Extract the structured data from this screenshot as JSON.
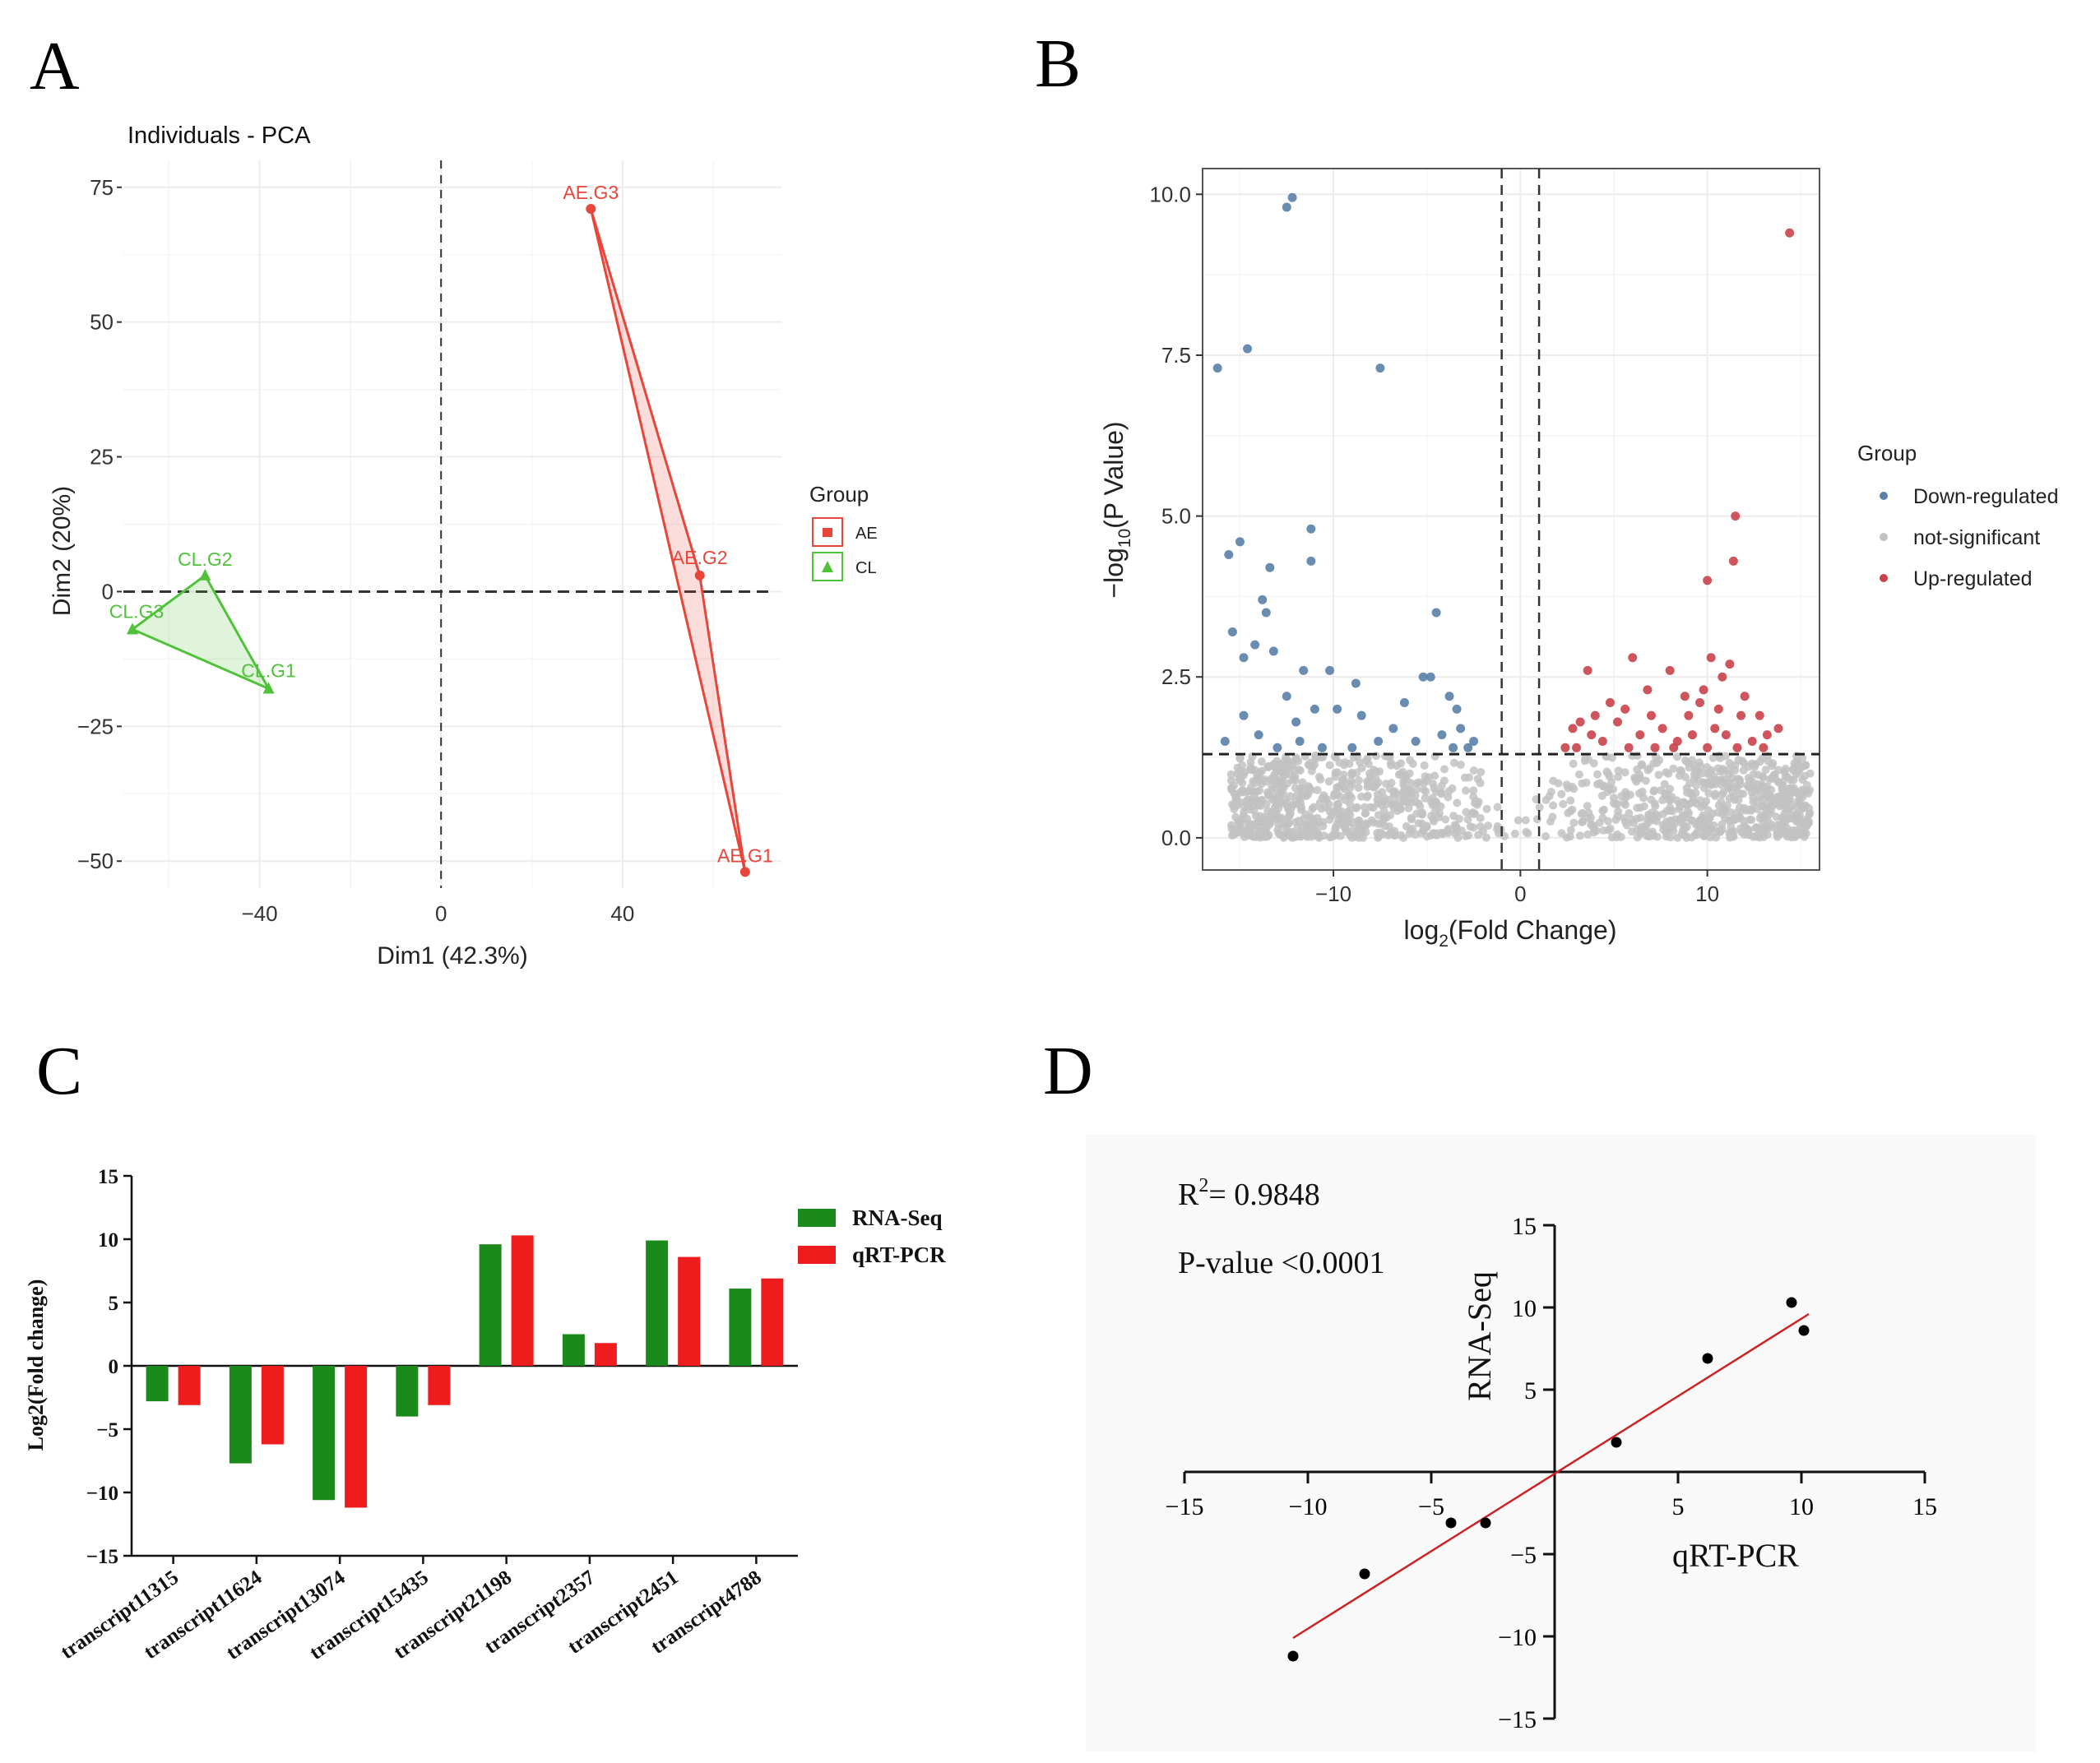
{
  "panel_labels": [
    "A",
    "B",
    "C",
    "D"
  ],
  "chart_data": [
    {
      "panel": "A",
      "type": "scatter",
      "title": "Individuals - PCA",
      "xlabel": "Dim1 (42.3%)",
      "ylabel": "Dim2 (20%)",
      "xlim": [
        -70,
        75
      ],
      "ylim": [
        -55,
        80
      ],
      "xticks": [
        -40,
        0,
        40
      ],
      "yticks": [
        -50,
        -25,
        0,
        25,
        50,
        75
      ],
      "legend": {
        "title": "Group",
        "placement": "right",
        "entries": [
          "AE",
          "CL"
        ]
      },
      "colors": {
        "AE": "#e8463a",
        "CL": "#4fc23a"
      },
      "points": [
        {
          "label": "AE.G3",
          "group": "AE",
          "x": 33,
          "y": 71
        },
        {
          "label": "AE.G2",
          "group": "AE",
          "x": 57,
          "y": 3
        },
        {
          "label": "AE.G1",
          "group": "AE",
          "x": 67,
          "y": -52
        },
        {
          "label": "CL.G2",
          "group": "CL",
          "x": -52,
          "y": 3
        },
        {
          "label": "CL.G3",
          "group": "CL",
          "x": -68,
          "y": -7
        },
        {
          "label": "CL.G1",
          "group": "CL",
          "x": -38,
          "y": -18
        }
      ]
    },
    {
      "panel": "B",
      "type": "scatter",
      "title": "",
      "xlabel": "log2(Fold Change)",
      "ylabel": "-log10(P Value)",
      "xlim": [
        -17,
        16
      ],
      "ylim": [
        -0.5,
        10.4
      ],
      "xticks": [
        -10,
        0,
        10
      ],
      "yticks": [
        0.0,
        2.5,
        5.0,
        7.5,
        10.0
      ],
      "ytick_labels": [
        "0.0",
        "2.5",
        "5.0",
        "7.5",
        "10.0"
      ],
      "thresholds": {
        "x": [
          -1,
          1
        ],
        "y": 1.3
      },
      "legend": {
        "title": "Group",
        "placement": "right",
        "entries": [
          "Down-regulated",
          "not-significant",
          "Up-regulated"
        ]
      },
      "colors": {
        "Down-regulated": "#5a7fa8",
        "not-significant": "#c2c2c2",
        "Up-regulated": "#c9424a"
      },
      "series": [
        {
          "name": "Down-regulated",
          "points": [
            [
              -12.5,
              9.8
            ],
            [
              -12.2,
              9.95
            ],
            [
              -16.2,
              7.3
            ],
            [
              -14.6,
              7.6
            ],
            [
              -7.5,
              7.3
            ],
            [
              -11.2,
              4.8
            ],
            [
              -15.6,
              4.4
            ],
            [
              -15.0,
              4.6
            ],
            [
              -13.4,
              4.2
            ],
            [
              -11.2,
              4.3
            ],
            [
              -13.8,
              3.7
            ],
            [
              -13.6,
              3.5
            ],
            [
              -4.5,
              3.5
            ],
            [
              -15.4,
              3.2
            ],
            [
              -14.2,
              3.0
            ],
            [
              -14.8,
              2.8
            ],
            [
              -13.2,
              2.9
            ],
            [
              -11.6,
              2.6
            ],
            [
              -10.2,
              2.6
            ],
            [
              -8.8,
              2.4
            ],
            [
              -4.8,
              2.5
            ],
            [
              -5.2,
              2.5
            ],
            [
              -14.8,
              1.9
            ],
            [
              -12.5,
              2.2
            ],
            [
              -11.0,
              2.0
            ],
            [
              -9.8,
              2.0
            ],
            [
              -8.5,
              1.9
            ],
            [
              -6.2,
              2.1
            ],
            [
              -3.8,
              2.2
            ],
            [
              -3.4,
              2.0
            ],
            [
              -14.0,
              1.6
            ],
            [
              -11.8,
              1.5
            ],
            [
              -9.0,
              1.4
            ],
            [
              -7.6,
              1.5
            ],
            [
              -5.6,
              1.5
            ],
            [
              -4.2,
              1.6
            ],
            [
              -3.2,
              1.7
            ],
            [
              -2.8,
              1.4
            ],
            [
              -13.0,
              1.4
            ],
            [
              -10.6,
              1.4
            ],
            [
              -3.6,
              1.4
            ],
            [
              -2.5,
              1.5
            ],
            [
              -15.8,
              1.5
            ],
            [
              -12.0,
              1.8
            ],
            [
              -6.8,
              1.7
            ]
          ]
        },
        {
          "name": "Up-regulated",
          "points": [
            [
              14.4,
              9.4
            ],
            [
              11.5,
              5.0
            ],
            [
              11.4,
              4.3
            ],
            [
              10.0,
              4.0
            ],
            [
              3.6,
              2.6
            ],
            [
              6.0,
              2.8
            ],
            [
              8.0,
              2.6
            ],
            [
              10.2,
              2.8
            ],
            [
              10.8,
              2.5
            ],
            [
              11.2,
              2.7
            ],
            [
              2.8,
              1.7
            ],
            [
              3.2,
              1.8
            ],
            [
              3.8,
              1.6
            ],
            [
              4.4,
              1.5
            ],
            [
              5.2,
              1.8
            ],
            [
              6.4,
              1.6
            ],
            [
              7.0,
              1.9
            ],
            [
              7.6,
              1.7
            ],
            [
              8.4,
              1.5
            ],
            [
              9.0,
              1.9
            ],
            [
              9.6,
              2.1
            ],
            [
              10.4,
              1.7
            ],
            [
              11.0,
              1.6
            ],
            [
              11.8,
              1.9
            ],
            [
              12.4,
              1.5
            ],
            [
              13.2,
              1.6
            ],
            [
              13.8,
              1.7
            ],
            [
              4.8,
              2.1
            ],
            [
              6.8,
              2.3
            ],
            [
              8.8,
              2.2
            ],
            [
              9.8,
              2.3
            ],
            [
              12.0,
              2.2
            ],
            [
              2.4,
              1.4
            ],
            [
              3.0,
              1.4
            ],
            [
              5.8,
              1.4
            ],
            [
              7.2,
              1.4
            ],
            [
              8.2,
              1.4
            ],
            [
              10.0,
              1.4
            ],
            [
              11.6,
              1.4
            ],
            [
              13.0,
              1.4
            ],
            [
              4.0,
              1.9
            ],
            [
              5.6,
              2.0
            ],
            [
              9.2,
              1.6
            ],
            [
              10.6,
              2.0
            ],
            [
              12.8,
              1.9
            ]
          ]
        }
      ],
      "not_significant_note": "dense cloud of points below the p-value threshold, V-shaped around log2FC = 0"
    },
    {
      "panel": "C",
      "type": "bar",
      "title": "",
      "xlabel": "",
      "ylabel": "Log2(Fold change)",
      "ylim": [
        -15,
        15
      ],
      "yticks": [
        -15,
        -10,
        -5,
        0,
        5,
        10,
        15
      ],
      "categories": [
        "transcript11315",
        "transcript11624",
        "transcript13074",
        "transcript15435",
        "transcript21198",
        "transcript2357",
        "transcript2451",
        "transcript4788"
      ],
      "legend": {
        "placement": "top-right",
        "entries": [
          "RNA-Seq",
          "qRT-PCR"
        ]
      },
      "colors": {
        "RNA-Seq": "#1a8a1a",
        "qRT-PCR": "#ee1c1c"
      },
      "series": [
        {
          "name": "RNA-Seq",
          "values": [
            -2.8,
            -7.7,
            -10.6,
            -4.0,
            9.6,
            2.5,
            9.9,
            6.1
          ]
        },
        {
          "name": "qRT-PCR",
          "values": [
            -3.1,
            -6.2,
            -11.2,
            -3.1,
            10.3,
            1.8,
            8.6,
            6.9
          ]
        }
      ]
    },
    {
      "panel": "D",
      "type": "scatter",
      "title": "",
      "xlabel": "qRT-PCR",
      "ylabel": "RNA-Seq",
      "xlim": [
        -15,
        15
      ],
      "ylim": [
        -15,
        15
      ],
      "xticks": [
        -15,
        -10,
        -5,
        5,
        10,
        15
      ],
      "yticks": [
        -15,
        -10,
        -5,
        5,
        10,
        15
      ],
      "annotations": {
        "r_squared_prefix": "R",
        "r_squared_sup": "2",
        "r_squared_value": "= 0.9848",
        "p_value": "P-value <0.0001"
      },
      "regression_line": {
        "x": [
          -10.6,
          10.3
        ],
        "y": [
          -10.1,
          9.6
        ]
      },
      "points": [
        [
          -10.6,
          -11.2
        ],
        [
          -7.7,
          -6.2
        ],
        [
          -4.2,
          -3.1
        ],
        [
          -2.8,
          -3.1
        ],
        [
          2.5,
          1.8
        ],
        [
          6.2,
          6.9
        ],
        [
          9.6,
          10.3
        ],
        [
          10.1,
          8.6
        ]
      ],
      "colors": {
        "points": "#000000",
        "regression_line": "#cc2222"
      }
    }
  ]
}
